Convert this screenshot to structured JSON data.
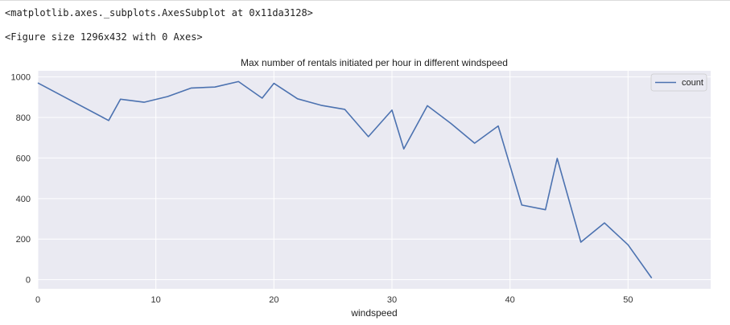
{
  "notebook": {
    "output_1": "<matplotlib.axes._subplots.AxesSubplot at 0x11da3128>",
    "output_2": "<Figure size 1296x432 with 0 Axes>"
  },
  "chart_data": {
    "type": "line",
    "title": "Max number of rentals initiated per hour in different windspeed",
    "xlabel": "windspeed",
    "ylabel": "",
    "xlim": [
      0,
      57
    ],
    "ylim": [
      -45,
      1030
    ],
    "xticks": [
      0,
      10,
      20,
      30,
      40,
      50
    ],
    "yticks": [
      0,
      200,
      400,
      600,
      800,
      1000
    ],
    "grid": true,
    "legend": "top-right",
    "series": [
      {
        "name": "count",
        "color": "#4c72b0",
        "x": [
          0,
          6,
          7,
          9,
          11,
          13,
          15,
          17,
          19,
          20,
          22,
          24,
          26,
          28,
          30,
          31,
          33,
          35,
          37,
          39,
          41,
          43,
          44,
          46,
          48,
          50,
          52
        ],
        "y": [
          970,
          785,
          890,
          875,
          903,
          945,
          950,
          977,
          895,
          968,
          892,
          860,
          840,
          705,
          836,
          645,
          858,
          770,
          673,
          758,
          368,
          345,
          598,
          185,
          280,
          172,
          8
        ]
      }
    ]
  }
}
